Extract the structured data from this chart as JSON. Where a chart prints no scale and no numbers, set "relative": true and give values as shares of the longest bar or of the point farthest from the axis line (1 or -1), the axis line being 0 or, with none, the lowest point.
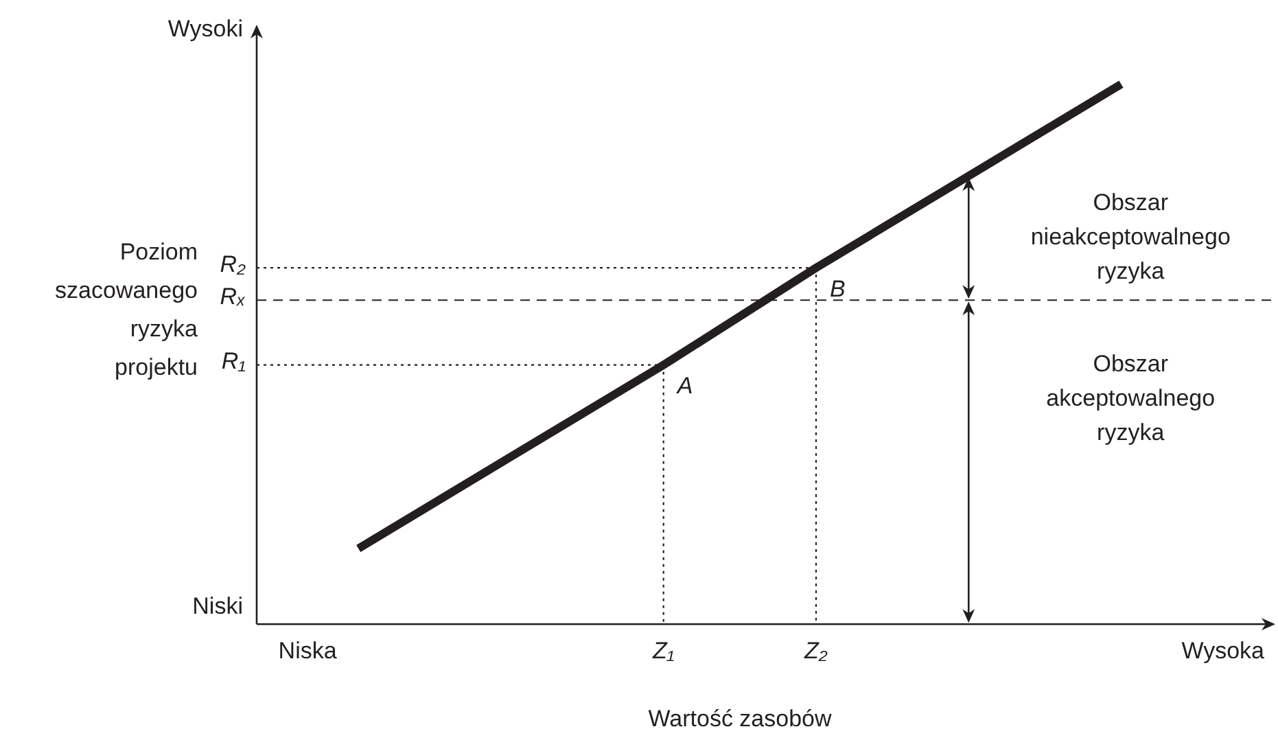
{
  "chart_data": {
    "type": "line",
    "relative": true,
    "xlabel": "Wartość zasobów",
    "ylabel": "Poziom szacowanego ryzyka projektu",
    "categories": [
      null,
      "Niska",
      null,
      null,
      null,
      null,
      null,
      null,
      "Z₁",
      null,
      null,
      "Z₂",
      null,
      null,
      null,
      null,
      null,
      null,
      null,
      "Wysoka"
    ],
    "series": [
      {
        "color": "#231f20",
        "values": [
          null,
          null,
          0.14,
          null,
          null,
          null,
          null,
          null,
          0.48,
          null,
          null,
          0.66,
          null,
          null,
          null,
          null,
          null,
          1,
          null,
          null
        ]
      }
    ],
    "ref_lines": [
      {
        "axis": "y",
        "value": 0.66,
        "label": "R₂",
        "line_style": "dotted",
        "color": "#231f20"
      },
      {
        "axis": "y",
        "value": 0.6,
        "label": "Rₓ",
        "line_style": "dashed",
        "color": "#231f20"
      },
      {
        "axis": "y",
        "value": 0.48,
        "label": "R₁",
        "line_style": "dotted",
        "color": "#231f20"
      }
    ],
    "annotations": [
      "Wysoki",
      "Niski",
      "Obszar nieakceptowalnego ryzyka",
      "Obszar akceptowalnego ryzyka",
      {
        "text": "A",
        "x": "Z₁",
        "y": 0.48
      },
      {
        "text": "B",
        "x": "Z₂",
        "y": 0.66
      }
    ],
    "marker": "none",
    "line_style": "solid",
    "legend": false
  }
}
